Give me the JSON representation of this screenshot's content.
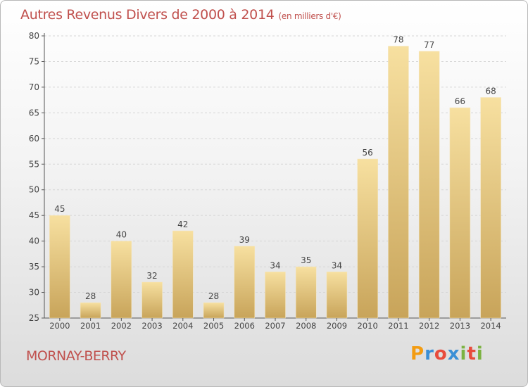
{
  "title": "Autres Revenus Divers de 2000 à 2014",
  "subtitle": "(en milliers d'€)",
  "location": "MORNAY-BERRY",
  "logo": {
    "text": "Proxiti",
    "letters": [
      "P",
      "r",
      "o",
      "x",
      "i",
      "t",
      "i"
    ],
    "colors": [
      "#f39c12",
      "#3a8fd6",
      "#e84c3d",
      "#3a8fd6",
      "#7cb342",
      "#e84c3d",
      "#7cb342"
    ]
  },
  "colors": {
    "bar_light": "#f7e0a0",
    "bar_dark": "#c8a45a",
    "title": "#c0504d"
  },
  "chart_data": {
    "type": "bar",
    "title": "Autres Revenus Divers de 2000 à 2014",
    "categories": [
      "2000",
      "2001",
      "2002",
      "2003",
      "2004",
      "2005",
      "2006",
      "2007",
      "2008",
      "2009",
      "2010",
      "2011",
      "2012",
      "2013",
      "2014"
    ],
    "values": [
      45,
      28,
      40,
      32,
      42,
      28,
      39,
      34,
      35,
      34,
      56,
      78,
      77,
      66,
      68
    ],
    "ylim": [
      25,
      80
    ],
    "yticks": [
      25,
      30,
      35,
      40,
      45,
      50,
      55,
      60,
      65,
      70,
      75,
      80
    ],
    "grid": true
  }
}
